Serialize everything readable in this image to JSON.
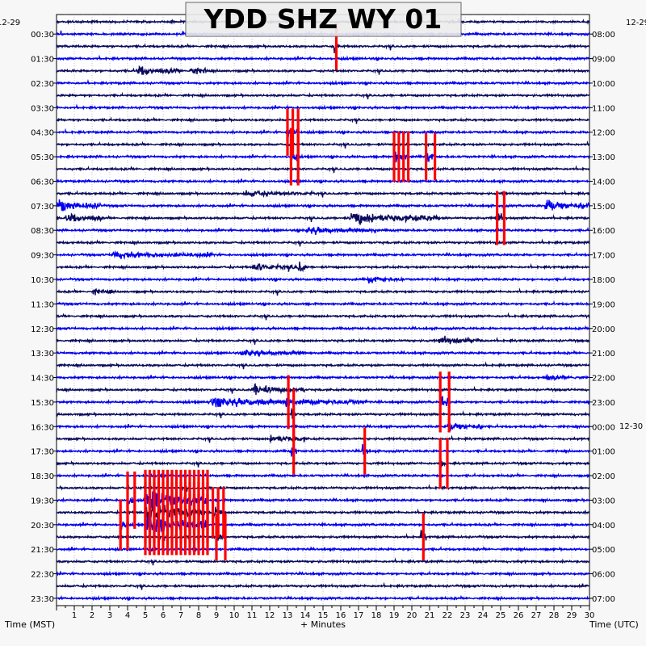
{
  "chart_data": {
    "type": "line",
    "title": "YDD SHZ WY 01",
    "left_date": "12-29",
    "right_date_top": "12-29",
    "right_date_change": "12-30",
    "xlabel": "+ Minutes",
    "left_axis_label": "Time (MST)",
    "right_axis_label": "Time (UTC)",
    "x_ticks": [
      "1",
      "2",
      "3",
      "4",
      "5",
      "6",
      "7",
      "8",
      "9",
      "10",
      "11",
      "12",
      "13",
      "14",
      "15",
      "16",
      "17",
      "18",
      "19",
      "20",
      "21",
      "22",
      "23",
      "24",
      "25",
      "26",
      "27",
      "28",
      "29",
      "30"
    ],
    "xlim": [
      0,
      30
    ],
    "rows_per_hour": 2,
    "row_count": 48,
    "left_hour_labels": [
      "00:30",
      "01:30",
      "02:30",
      "03:30",
      "04:30",
      "05:30",
      "06:30",
      "07:30",
      "08:30",
      "09:30",
      "10:30",
      "11:30",
      "12:30",
      "13:30",
      "14:30",
      "15:30",
      "16:30",
      "17:30",
      "18:30",
      "19:30",
      "20:30",
      "21:30",
      "22:30",
      "23:30"
    ],
    "right_hour_labels": [
      "08:00",
      "09:00",
      "10:00",
      "11:00",
      "12:00",
      "13:00",
      "14:00",
      "15:00",
      "16:00",
      "17:00",
      "18:00",
      "19:00",
      "20:00",
      "21:00",
      "22:00",
      "23:00",
      "00:00",
      "01:00",
      "02:00",
      "03:00",
      "04:00",
      "05:00",
      "06:00",
      "07:00"
    ],
    "trace_colors": [
      "#0a0a5e",
      "#0000ee"
    ],
    "clip_color": "#ff0000",
    "grid": true,
    "events": [
      {
        "row": 2,
        "minute": 15.6,
        "duration": 0.3,
        "amp": 0.9,
        "clipped": true
      },
      {
        "row": 4,
        "minute": 4.5,
        "duration": 2.5,
        "amp": 0.6,
        "clipped": false
      },
      {
        "row": 4,
        "minute": 7.5,
        "duration": 1.0,
        "amp": 0.6,
        "clipped": false
      },
      {
        "row": 9,
        "minute": 13.0,
        "duration": 0.6,
        "amp": 0.9,
        "clipped": true
      },
      {
        "row": 11,
        "minute": 13.2,
        "duration": 0.4,
        "amp": 1.2,
        "clipped": true
      },
      {
        "row": 11,
        "minute": 19.0,
        "duration": 0.8,
        "amp": 1.0,
        "clipped": true
      },
      {
        "row": 11,
        "minute": 20.8,
        "duration": 0.5,
        "amp": 0.9,
        "clipped": true
      },
      {
        "row": 14,
        "minute": 10.5,
        "duration": 4.0,
        "amp": 0.3,
        "clipped": false
      },
      {
        "row": 15,
        "minute": 0.0,
        "duration": 2.5,
        "amp": 0.7,
        "clipped": false
      },
      {
        "row": 15,
        "minute": 27.5,
        "duration": 2.5,
        "amp": 0.8,
        "clipped": false
      },
      {
        "row": 16,
        "minute": 0.5,
        "duration": 2.0,
        "amp": 0.7,
        "clipped": false
      },
      {
        "row": 16,
        "minute": 16.5,
        "duration": 5.0,
        "amp": 0.8,
        "clipped": false
      },
      {
        "row": 16,
        "minute": 24.8,
        "duration": 0.4,
        "amp": 1.1,
        "clipped": true
      },
      {
        "row": 17,
        "minute": 14.0,
        "duration": 4.0,
        "amp": 0.4,
        "clipped": false
      },
      {
        "row": 19,
        "minute": 3.0,
        "duration": 6.0,
        "amp": 0.35,
        "clipped": false
      },
      {
        "row": 20,
        "minute": 11.0,
        "duration": 3.0,
        "amp": 0.4,
        "clipped": false
      },
      {
        "row": 20,
        "minute": 13.6,
        "duration": 0.5,
        "amp": 0.7,
        "clipped": false
      },
      {
        "row": 21,
        "minute": 17.5,
        "duration": 2.0,
        "amp": 0.35,
        "clipped": false
      },
      {
        "row": 22,
        "minute": 2.0,
        "duration": 1.2,
        "amp": 0.3,
        "clipped": false
      },
      {
        "row": 26,
        "minute": 21.5,
        "duration": 2.5,
        "amp": 0.45,
        "clipped": false
      },
      {
        "row": 27,
        "minute": 10.5,
        "duration": 3.5,
        "amp": 0.4,
        "clipped": false
      },
      {
        "row": 29,
        "minute": 27.5,
        "duration": 2.0,
        "amp": 0.3,
        "clipped": false
      },
      {
        "row": 30,
        "minute": 11.0,
        "duration": 3.0,
        "amp": 0.6,
        "clipped": false
      },
      {
        "row": 31,
        "minute": 8.5,
        "duration": 9.0,
        "amp": 0.5,
        "clipped": false
      },
      {
        "row": 31,
        "minute": 12.9,
        "duration": 0.3,
        "amp": 1.1,
        "clipped": true
      },
      {
        "row": 31,
        "minute": 21.6,
        "duration": 0.5,
        "amp": 1.3,
        "clipped": true
      },
      {
        "row": 32,
        "minute": 13.2,
        "duration": 0.3,
        "amp": 1.0,
        "clipped": true
      },
      {
        "row": 33,
        "minute": 22.0,
        "duration": 2.0,
        "amp": 0.6,
        "clipped": false
      },
      {
        "row": 34,
        "minute": 12.0,
        "duration": 2.0,
        "amp": 0.5,
        "clipped": false
      },
      {
        "row": 35,
        "minute": 13.2,
        "duration": 0.3,
        "amp": 0.9,
        "clipped": true
      },
      {
        "row": 35,
        "minute": 17.2,
        "duration": 0.3,
        "amp": 0.9,
        "clipped": true
      },
      {
        "row": 36,
        "minute": 21.6,
        "duration": 0.4,
        "amp": 1.0,
        "clipped": true
      },
      {
        "row": 39,
        "minute": 4.0,
        "duration": 0.4,
        "amp": 1.2,
        "clipped": true
      },
      {
        "row": 39,
        "minute": 5.0,
        "duration": 3.5,
        "amp": 1.3,
        "clipped": true
      },
      {
        "row": 40,
        "minute": 5.0,
        "duration": 3.5,
        "amp": 1.3,
        "clipped": true
      },
      {
        "row": 40,
        "minute": 8.8,
        "duration": 0.6,
        "amp": 1.0,
        "clipped": true
      },
      {
        "row": 41,
        "minute": 5.0,
        "duration": 3.5,
        "amp": 1.3,
        "clipped": true
      },
      {
        "row": 41,
        "minute": 3.6,
        "duration": 0.4,
        "amp": 1.0,
        "clipped": true
      },
      {
        "row": 42,
        "minute": 20.5,
        "duration": 0.3,
        "amp": 0.9,
        "clipped": true
      },
      {
        "row": 42,
        "minute": 9.0,
        "duration": 0.5,
        "amp": 0.9,
        "clipped": true
      }
    ]
  }
}
